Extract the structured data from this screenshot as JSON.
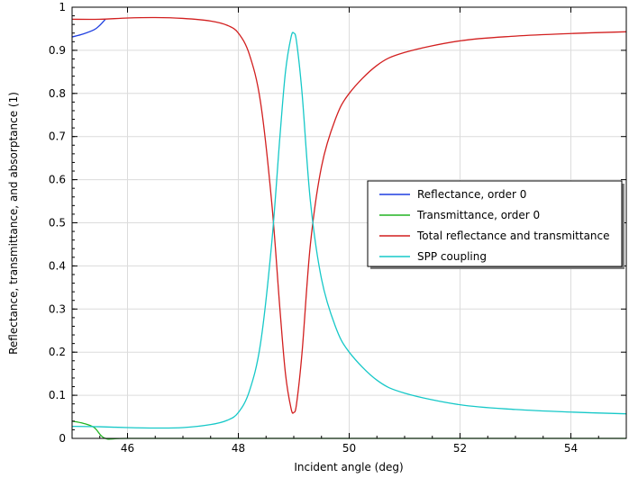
{
  "chart_data": {
    "type": "line",
    "title": "",
    "xlabel": "Incident angle (deg)",
    "ylabel": "Reflectance, transmittance, and absorptance (1)",
    "xlim": [
      45,
      55
    ],
    "ylim": [
      0,
      1
    ],
    "xticks": [
      46,
      48,
      50,
      52,
      54
    ],
    "yticks": [
      0,
      0.1,
      0.2,
      0.3,
      0.4,
      0.5,
      0.6,
      0.7,
      0.8,
      0.9,
      1
    ],
    "grid": true,
    "legend_position": "right",
    "series": [
      {
        "name": "Reflectance, order 0",
        "color": "#1f3fe0",
        "x": [
          45.0,
          45.2,
          45.4,
          45.5,
          45.6
        ],
        "y": [
          0.931,
          0.938,
          0.948,
          0.958,
          0.972
        ]
      },
      {
        "name": "Transmittance, order 0",
        "color": "#22b422",
        "x": [
          45.0,
          45.2,
          45.4,
          45.6,
          46.0,
          48.0,
          50.0,
          52.0,
          55.0
        ],
        "y": [
          0.04,
          0.035,
          0.025,
          0.0,
          0.0,
          0.0,
          0.0,
          0.0,
          0.0
        ]
      },
      {
        "name": "Total reflectance and transmittance",
        "color": "#d21f1f",
        "x": [
          45.0,
          45.5,
          46.0,
          46.5,
          47.0,
          47.5,
          47.8,
          48.0,
          48.2,
          48.4,
          48.6,
          48.75,
          48.85,
          48.95,
          49.0,
          49.05,
          49.15,
          49.3,
          49.5,
          49.75,
          50.0,
          50.5,
          51.0,
          52.0,
          53.0,
          54.0,
          55.0
        ],
        "y": [
          0.972,
          0.972,
          0.975,
          0.976,
          0.974,
          0.968,
          0.958,
          0.94,
          0.89,
          0.78,
          0.55,
          0.3,
          0.15,
          0.07,
          0.06,
          0.08,
          0.2,
          0.45,
          0.63,
          0.74,
          0.8,
          0.865,
          0.895,
          0.922,
          0.933,
          0.939,
          0.943
        ]
      },
      {
        "name": "SPP coupling",
        "color": "#16c8c8",
        "x": [
          45.0,
          45.5,
          46.0,
          46.5,
          47.0,
          47.5,
          47.8,
          48.0,
          48.2,
          48.4,
          48.6,
          48.75,
          48.85,
          48.95,
          49.0,
          49.05,
          49.15,
          49.3,
          49.5,
          49.75,
          50.0,
          50.5,
          51.0,
          52.0,
          53.0,
          54.0,
          55.0
        ],
        "y": [
          0.028,
          0.027,
          0.025,
          0.024,
          0.025,
          0.032,
          0.042,
          0.06,
          0.11,
          0.22,
          0.45,
          0.7,
          0.85,
          0.93,
          0.94,
          0.92,
          0.8,
          0.55,
          0.37,
          0.26,
          0.2,
          0.135,
          0.105,
          0.078,
          0.067,
          0.061,
          0.057
        ]
      }
    ]
  }
}
